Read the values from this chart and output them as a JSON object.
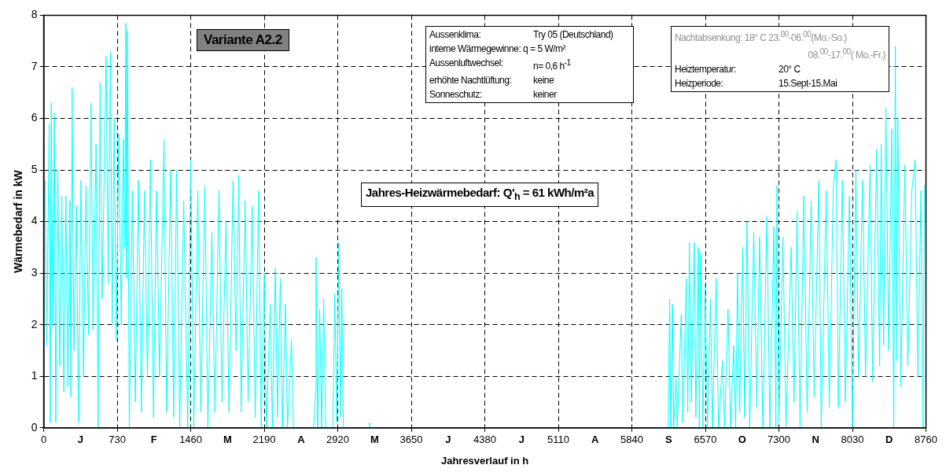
{
  "chart_data": {
    "type": "line",
    "xlabel": "Jahresverlauf in h",
    "ylabel": "Wärmebedarf in kW",
    "xlim": [
      0,
      8760
    ],
    "xticks": [
      0,
      {
        "value": 365,
        "label": "J"
      },
      730,
      {
        "value": 1095,
        "label": "F"
      },
      1460,
      {
        "value": 1825,
        "label": "M"
      },
      2190,
      {
        "value": 2555,
        "label": "A"
      },
      2920,
      {
        "value": 3285,
        "label": "M"
      },
      3650,
      {
        "value": 4015,
        "label": "J"
      },
      4380,
      {
        "value": 4745,
        "label": "J"
      },
      5110,
      {
        "value": 5475,
        "label": "A"
      },
      5840,
      {
        "value": 6205,
        "label": "S"
      },
      6570,
      {
        "value": 6935,
        "label": "O"
      },
      7300,
      {
        "value": 7665,
        "label": "N"
      },
      8030,
      {
        "value": 8395,
        "label": "D"
      },
      8760
    ],
    "ylim": [
      0,
      8
    ],
    "yticks": [
      0,
      1,
      2,
      3,
      4,
      5,
      6,
      7,
      8
    ],
    "grid": true,
    "line_style": "solid",
    "annotations": [
      "Variante A2.2",
      "Aussenklima:\tTry 05 (Deutschland)",
      "interne Wärmegewinne: q =  5 W/m²",
      "Aussenluftwechsel:\tn= 0,6 h$^{-1}$",
      "erhöhte Nachtlüftung:\tkeine",
      "Sonneschutz:\tkeiner",
      "Nachtabsenkung: 18° C 23.$^{00}$-06.$^{00}$(Mo.-So.)",
      "08.$^{00}$-17.$^{00}$( Mo.-Fr.)",
      "Heiztemperatur:\t20° C",
      "Heizperiode:\t15.Sept-15.Mai",
      "Jahres-Heizwärmebedarf: Q'$_{h}$ =  61 kWh/m²a"
    ],
    "series": [
      {
        "color": "#00ffff",
        "x": [
          15,
          30,
          55,
          65,
          75,
          90,
          105,
          120,
          140,
          160,
          180,
          200,
          220,
          240,
          260,
          270,
          282,
          300,
          325,
          345,
          370,
          395,
          420,
          445,
          470,
          490,
          520,
          540,
          560,
          580,
          620,
          640,
          663,
          680,
          700,
          720,
          745,
          770,
          790,
          805,
          815,
          822,
          830,
          850,
          880,
          910,
          940,
          970,
          1000,
          1030,
          1060,
          1090,
          1120,
          1150,
          1194,
          1220,
          1260,
          1290,
          1320,
          1350,
          1390,
          1430,
          1460,
          1490,
          1530,
          1560,
          1600,
          1630,
          1670,
          1700,
          1740,
          1770,
          1810,
          1840,
          1880,
          1910,
          1937,
          1960,
          2000,
          2030,
          2070,
          2100,
          2133,
          2160,
          2190,
          2210,
          2250,
          2270,
          2300,
          2320,
          2350,
          2370,
          2400,
          2420,
          2460,
          2480,
          2680,
          2700,
          2704,
          2720,
          2740,
          2760,
          2780,
          2800,
          2870,
          2890,
          2910,
          2931,
          2945,
          2960,
          2975,
          3230,
          3235,
          3240,
          6200,
          6215,
          6225,
          6243,
          6255,
          6278,
          6290,
          6330,
          6345,
          6380,
          6395,
          6411,
          6430,
          6460,
          6475,
          6500,
          6510,
          6520,
          6545,
          6567,
          6590,
          6620,
          6640,
          6677,
          6700,
          6740,
          6760,
          6795,
          6820,
          6850,
          6870,
          6889,
          6910,
          6940,
          6960,
          6983,
          7010,
          7050,
          7080,
          7108,
          7140,
          7180,
          7210,
          7250,
          7270,
          7280,
          7300,
          7340,
          7370,
          7421,
          7450,
          7480,
          7510,
          7547,
          7580,
          7620,
          7650,
          7696,
          7720,
          7770,
          7800,
          7840,
          7868,
          7890,
          7930,
          7960,
          8000,
          8030,
          8064,
          8090,
          8130,
          8160,
          8205,
          8230,
          8270,
          8300,
          8315,
          8340,
          8362,
          8390,
          8420,
          8440,
          8456,
          8470,
          8480,
          8510,
          8550,
          8580,
          8620,
          8652,
          8680,
          8710,
          8730,
          8745,
          8760
        ],
        "values": [
          4.8,
          1.6,
          5.9,
          0.1,
          6.3,
          2.0,
          6.1,
          0.1,
          5.0,
          1.2,
          4.5,
          0.7,
          4.5,
          0.8,
          4.4,
          0.6,
          6.6,
          1.5,
          4.3,
          0.1,
          4.8,
          1.0,
          4.7,
          1.8,
          6.3,
          1.9,
          5.5,
          0.0,
          6.7,
          2.5,
          7.2,
          2.8,
          7.3,
          2.0,
          6.0,
          1.7,
          5.7,
          2.0,
          5.6,
          3.5,
          7.85,
          2.9,
          7.7,
          0.0,
          4.6,
          0.5,
          4.8,
          0.3,
          4.6,
          1.0,
          5.2,
          0.2,
          4.6,
          1.0,
          5.6,
          0.3,
          5.0,
          0.2,
          5.0,
          0.0,
          4.4,
          0.0,
          5.2,
          0.0,
          4.6,
          0.3,
          4.7,
          0.0,
          3.8,
          0.3,
          4.6,
          0.5,
          4.0,
          0.3,
          4.8,
          1.5,
          4.9,
          0.3,
          4.4,
          0.5,
          4.3,
          0.2,
          4.6,
          0.0,
          3.0,
          0.0,
          2.4,
          0.0,
          3.1,
          0.2,
          2.9,
          0.0,
          2.4,
          0.0,
          1.7,
          0.0,
          0.0,
          0.7,
          3.3,
          0.0,
          2.3,
          0.0,
          2.5,
          0.0,
          0.0,
          2.6,
          0.1,
          3.6,
          0.2,
          2.7,
          0.0,
          0.0,
          0.1,
          0.0,
          0.0,
          2.5,
          0,
          2.4,
          0,
          1.0,
          0,
          2.2,
          0.1,
          2.9,
          0.3,
          3.6,
          0.5,
          3.6,
          0.2,
          3.5,
          0.0,
          3.4,
          0.0,
          2.8,
          0.0,
          2.5,
          0.0,
          2.9,
          0.0,
          1.3,
          0.0,
          2.3,
          0.0,
          1.6,
          0.0,
          3.0,
          0.3,
          3.5,
          0.2,
          4.0,
          0.0,
          3.8,
          0.4,
          3.7,
          0.0,
          4.1,
          0.0,
          3.9,
          0.0,
          4.7,
          0.1,
          3.7,
          0.0,
          3.5,
          0.5,
          4.2,
          0.0,
          4.5,
          0.3,
          4.4,
          0.6,
          4.8,
          0.0,
          4.6,
          0.4,
          4.7,
          5.2,
          0.4,
          4.8,
          0.5,
          4.5,
          0.0,
          5.0,
          1.0,
          4.8,
          1.0,
          5.1,
          0.9,
          5.4,
          1.2,
          5.5,
          1.6,
          6.2,
          1.5,
          5.8,
          0.0,
          7.4,
          1.3,
          6.0,
          0.8,
          5.1,
          1.2,
          4.6,
          5.2,
          1.0,
          4.6,
          0.0,
          4.7,
          4.7
        ]
      }
    ]
  }
}
